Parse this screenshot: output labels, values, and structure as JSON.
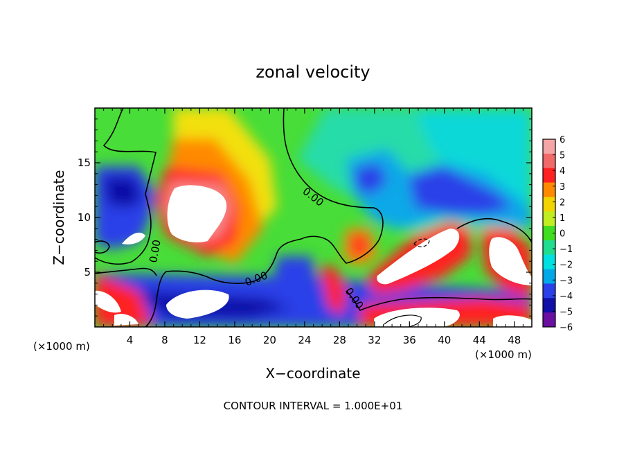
{
  "chart_data": {
    "type": "heatmap",
    "title": "zonal velocity",
    "xlabel": "X−coordinate",
    "ylabel": "Z−coordinate",
    "x_unit_left": "(×1000 m)",
    "x_unit_right": "(×1000 m)",
    "xlim": [
      0,
      50
    ],
    "ylim": [
      0,
      20
    ],
    "x_ticks": [
      4,
      8,
      12,
      16,
      20,
      24,
      28,
      32,
      36,
      40,
      44,
      48
    ],
    "y_ticks": [
      5,
      10,
      15
    ],
    "colorbar": {
      "range": [
        -6,
        6
      ],
      "ticks": [
        "6",
        "5",
        "4",
        "3",
        "2",
        "1",
        "0",
        "−1",
        "−2",
        "−3",
        "−4",
        "−5",
        "−6"
      ],
      "colors": [
        "#f4a6a6",
        "#f06a6a",
        "#ff2020",
        "#ff8a00",
        "#f2d400",
        "#c0ee20",
        "#40dd20",
        "#20dd90",
        "#00e0e0",
        "#00a8e8",
        "#2a40e8",
        "#1010a8",
        "#6a10a0"
      ]
    },
    "contour_labels": [
      "0.00",
      "0.00",
      "0.00",
      "0.00"
    ],
    "footer": "CONTOUR INTERVAL = 1.000E+01"
  }
}
